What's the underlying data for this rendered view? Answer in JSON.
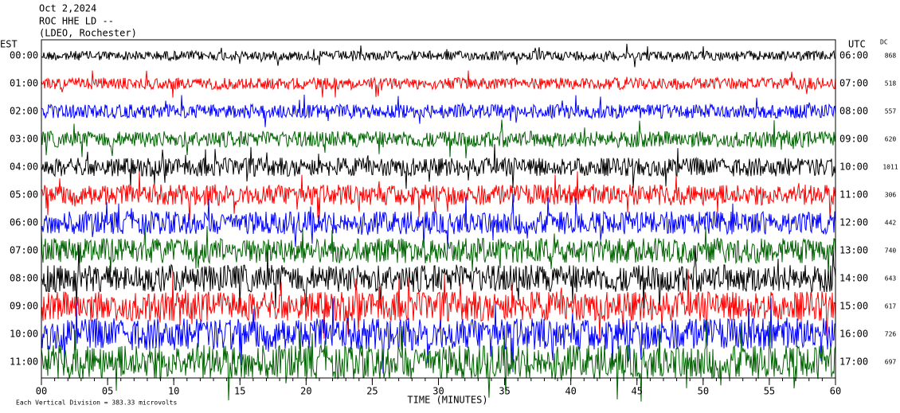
{
  "chart_data": {
    "type": "helicorder",
    "title_lines": [
      "Oct 2,2024",
      "ROC HHE LD --",
      "(LDEO, Rochester)"
    ],
    "left_axis_label": "EST",
    "right_axis_label": "UTC",
    "offset_label": "DC",
    "xlabel": "TIME (MINUTES)",
    "footnote": "Each Vertical Division = 383.33 microvolts",
    "xlim": [
      0,
      60
    ],
    "xticks": [
      {
        "value": 0,
        "label": "00"
      },
      {
        "value": 5,
        "label": "05"
      },
      10,
      15,
      20,
      25,
      30,
      35,
      40,
      45,
      50,
      55,
      60
    ],
    "est_labels": [
      "00:00",
      "01:00",
      "02:00",
      "03:00",
      "04:00",
      "05:00",
      "06:00",
      "07:00",
      "08:00",
      "09:00",
      "10:00",
      "11:00"
    ],
    "utc_labels": [
      "06:00",
      "07:00",
      "08:00",
      "09:00",
      "10:00",
      "11:00",
      "12:00",
      "13:00",
      "14:00",
      "15:00",
      "16:00",
      "17:00"
    ],
    "dc_values": [
      868,
      518,
      557,
      620,
      1011,
      306,
      442,
      740,
      643,
      617,
      726,
      697
    ],
    "trace_colors": [
      "#000000",
      "#ff0000",
      "#0000ff",
      "#006400"
    ]
  }
}
